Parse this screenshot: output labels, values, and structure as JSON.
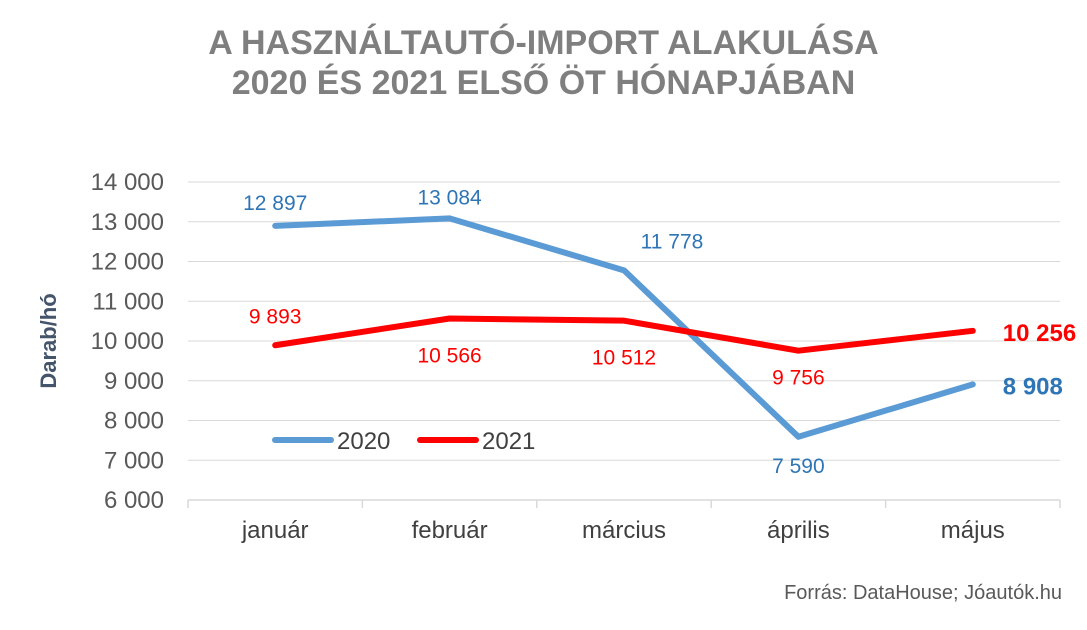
{
  "chart_data": {
    "type": "line",
    "title_lines": [
      "A HASZNÁLTAUTÓ-IMPORT ALAKULÁSA",
      "2020 ÉS 2021 ELSŐ ÖT HÓNAPJÁBAN"
    ],
    "ylabel": "Darab/hó",
    "xlabel": "",
    "ylim": [
      6000,
      14000
    ],
    "yticks": [
      6000,
      7000,
      8000,
      9000,
      10000,
      11000,
      12000,
      13000,
      14000
    ],
    "ytick_labels": [
      "6 000",
      "7 000",
      "8 000",
      "9 000",
      "10 000",
      "11 000",
      "12 000",
      "13 000",
      "14 000"
    ],
    "categories": [
      "január",
      "február",
      "március",
      "április",
      "május"
    ],
    "series": [
      {
        "name": "2020",
        "color": "#5b9bd5",
        "label_color": "#2e75b6",
        "values": [
          12897,
          13084,
          11778,
          7590,
          8908
        ],
        "labels": [
          "12 897",
          "13 084",
          "11 778",
          "7 590",
          "8 908"
        ]
      },
      {
        "name": "2021",
        "color": "#ff0000",
        "label_color": "#ff0000",
        "values": [
          9893,
          10566,
          10512,
          9756,
          10256
        ],
        "labels": [
          "9 893",
          "10 566",
          "10 512",
          "9 756",
          "10 256"
        ]
      }
    ],
    "grid": true,
    "legend": "bottom-left"
  },
  "source": "Forrás: DataHouse; Jóautók.hu"
}
